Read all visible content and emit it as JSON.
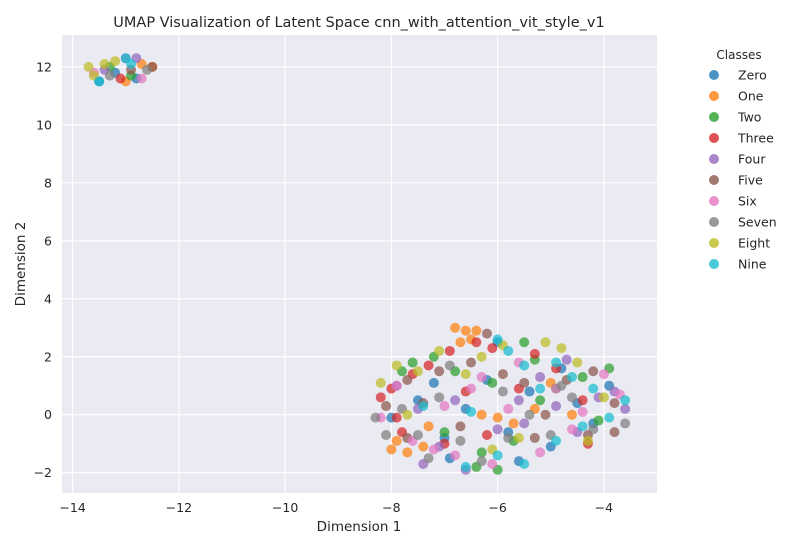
{
  "chart_data": {
    "type": "scatter",
    "title": "UMAP Visualization of Latent Space cnn_with_attention_vit_style_v1",
    "xlabel": "Dimension 1",
    "ylabel": "Dimension 2",
    "xlim": [
      -14.2,
      -3.0
    ],
    "ylim": [
      -2.7,
      13.1
    ],
    "xticks": [
      -14,
      -12,
      -10,
      -8,
      -6,
      -4
    ],
    "yticks": [
      -2,
      0,
      2,
      4,
      6,
      8,
      10,
      12
    ],
    "xtick_labels": [
      "−14",
      "−12",
      "−10",
      "−8",
      "−6",
      "−4"
    ],
    "ytick_labels": [
      "−2",
      "0",
      "2",
      "4",
      "6",
      "8",
      "10",
      "12"
    ],
    "grid": true,
    "background": "#eaeaf2",
    "legend": {
      "title": "Classes",
      "placement": "outside-right",
      "entries": [
        "Zero",
        "One",
        "Two",
        "Three",
        "Four",
        "Five",
        "Six",
        "Seven",
        "Eight",
        "Nine"
      ]
    },
    "colors": [
      "#1f77b4",
      "#ff7f0e",
      "#2ca02c",
      "#d62728",
      "#9467bd",
      "#8c564b",
      "#e377c2",
      "#7f7f7f",
      "#bcbd22",
      "#17becf"
    ],
    "series": [
      {
        "name": "Zero",
        "values": [
          [
            -13.2,
            11.8
          ],
          [
            -12.8,
            11.6
          ],
          [
            -13.5,
            11.5
          ],
          [
            -8.0,
            -0.1
          ],
          [
            -7.5,
            0.5
          ],
          [
            -7.0,
            -0.8
          ],
          [
            -6.6,
            0.2
          ],
          [
            -6.2,
            1.2
          ],
          [
            -6.0,
            2.5
          ],
          [
            -5.8,
            -0.6
          ],
          [
            -5.4,
            0.8
          ],
          [
            -5.0,
            -1.1
          ],
          [
            -4.8,
            1.6
          ],
          [
            -4.5,
            0.4
          ],
          [
            -4.2,
            -0.3
          ],
          [
            -3.9,
            1.0
          ],
          [
            -6.9,
            -1.5
          ],
          [
            -7.2,
            1.1
          ],
          [
            -5.6,
            -1.6
          ]
        ]
      },
      {
        "name": "One",
        "values": [
          [
            -12.7,
            12.1
          ],
          [
            -12.5,
            12.0
          ],
          [
            -13.0,
            11.5
          ],
          [
            -6.8,
            3.0
          ],
          [
            -6.6,
            2.9
          ],
          [
            -6.4,
            2.9
          ],
          [
            -6.5,
            2.6
          ],
          [
            -6.7,
            2.5
          ],
          [
            -8.0,
            -1.2
          ],
          [
            -7.7,
            -1.3
          ],
          [
            -7.4,
            -1.1
          ],
          [
            -7.9,
            -0.9
          ],
          [
            -6.0,
            -0.1
          ],
          [
            -5.7,
            -0.3
          ],
          [
            -5.3,
            0.2
          ],
          [
            -5.0,
            1.1
          ],
          [
            -4.6,
            0.0
          ],
          [
            -7.3,
            -0.4
          ],
          [
            -6.3,
            0.0
          ]
        ]
      },
      {
        "name": "Two",
        "values": [
          [
            -12.9,
            11.7
          ],
          [
            -13.3,
            12.0
          ],
          [
            -7.8,
            1.5
          ],
          [
            -7.6,
            1.8
          ],
          [
            -7.2,
            2.0
          ],
          [
            -6.8,
            1.5
          ],
          [
            -6.1,
            1.1
          ],
          [
            -5.5,
            2.5
          ],
          [
            -5.3,
            1.9
          ],
          [
            -4.9,
            0.9
          ],
          [
            -4.4,
            1.3
          ],
          [
            -3.9,
            1.6
          ],
          [
            -7.0,
            -0.6
          ],
          [
            -6.4,
            -1.8
          ],
          [
            -6.0,
            -1.9
          ],
          [
            -5.7,
            -0.9
          ],
          [
            -5.2,
            0.5
          ],
          [
            -4.1,
            -0.2
          ],
          [
            -6.3,
            -1.3
          ]
        ]
      },
      {
        "name": "Three",
        "values": [
          [
            -13.1,
            11.6
          ],
          [
            -8.2,
            0.6
          ],
          [
            -8.0,
            0.9
          ],
          [
            -7.9,
            -0.1
          ],
          [
            -7.6,
            1.4
          ],
          [
            -7.3,
            1.7
          ],
          [
            -6.9,
            2.2
          ],
          [
            -6.4,
            2.5
          ],
          [
            -6.1,
            2.3
          ],
          [
            -5.3,
            2.1
          ],
          [
            -4.9,
            1.6
          ],
          [
            -4.4,
            0.5
          ],
          [
            -4.3,
            -1.0
          ],
          [
            -7.0,
            -1.0
          ],
          [
            -6.2,
            -0.7
          ],
          [
            -5.6,
            0.9
          ],
          [
            -7.8,
            -0.6
          ],
          [
            -6.6,
            0.8
          ]
        ]
      },
      {
        "name": "Four",
        "values": [
          [
            -13.0,
            12.3
          ],
          [
            -12.8,
            12.3
          ],
          [
            -13.4,
            11.9
          ],
          [
            -7.9,
            1.0
          ],
          [
            -7.5,
            0.2
          ],
          [
            -7.1,
            -1.1
          ],
          [
            -6.6,
            -1.9
          ],
          [
            -6.0,
            -0.5
          ],
          [
            -5.6,
            0.5
          ],
          [
            -5.2,
            1.3
          ],
          [
            -4.9,
            0.3
          ],
          [
            -4.5,
            -0.6
          ],
          [
            -4.1,
            0.6
          ],
          [
            -3.8,
            0.8
          ],
          [
            -3.6,
            0.2
          ],
          [
            -7.4,
            -1.7
          ],
          [
            -5.5,
            -0.3
          ],
          [
            -6.8,
            0.5
          ],
          [
            -4.7,
            1.9
          ]
        ]
      },
      {
        "name": "Five",
        "values": [
          [
            -12.5,
            12.0
          ],
          [
            -12.9,
            11.9
          ],
          [
            -8.1,
            0.3
          ],
          [
            -7.7,
            1.2
          ],
          [
            -7.4,
            0.4
          ],
          [
            -7.1,
            1.5
          ],
          [
            -6.5,
            1.8
          ],
          [
            -6.2,
            2.8
          ],
          [
            -5.9,
            1.4
          ],
          [
            -5.5,
            1.1
          ],
          [
            -5.1,
            0.0
          ],
          [
            -4.7,
            1.2
          ],
          [
            -4.2,
            1.5
          ],
          [
            -3.8,
            -0.6
          ],
          [
            -3.8,
            0.4
          ],
          [
            -6.7,
            -0.4
          ],
          [
            -7.7,
            -0.8
          ],
          [
            -5.3,
            -0.8
          ],
          [
            -4.3,
            -0.7
          ]
        ]
      },
      {
        "name": "Six",
        "values": [
          [
            -13.6,
            11.8
          ],
          [
            -12.7,
            11.6
          ],
          [
            -8.2,
            -0.1
          ],
          [
            -7.9,
            1.0
          ],
          [
            -7.6,
            -0.9
          ],
          [
            -7.2,
            -1.2
          ],
          [
            -6.8,
            -1.4
          ],
          [
            -6.5,
            0.9
          ],
          [
            -6.1,
            -1.7
          ],
          [
            -5.6,
            1.8
          ],
          [
            -5.2,
            -1.3
          ],
          [
            -4.9,
            0.9
          ],
          [
            -4.4,
            0.1
          ],
          [
            -4.0,
            1.4
          ],
          [
            -3.7,
            0.7
          ],
          [
            -7.0,
            0.3
          ],
          [
            -5.8,
            0.2
          ],
          [
            -4.6,
            -0.5
          ],
          [
            -6.3,
            1.3
          ]
        ]
      },
      {
        "name": "Seven",
        "values": [
          [
            -13.3,
            11.7
          ],
          [
            -12.6,
            11.9
          ],
          [
            -8.3,
            -0.1
          ],
          [
            -8.1,
            -0.7
          ],
          [
            -7.8,
            0.2
          ],
          [
            -7.5,
            -0.7
          ],
          [
            -7.1,
            0.6
          ],
          [
            -6.7,
            -0.9
          ],
          [
            -6.3,
            -1.6
          ],
          [
            -5.8,
            -0.8
          ],
          [
            -5.4,
            0.0
          ],
          [
            -5.0,
            -0.7
          ],
          [
            -4.6,
            0.6
          ],
          [
            -4.2,
            -0.5
          ],
          [
            -3.6,
            -0.3
          ],
          [
            -6.9,
            1.7
          ],
          [
            -5.9,
            0.8
          ],
          [
            -4.8,
            1.0
          ],
          [
            -7.3,
            -1.5
          ]
        ]
      },
      {
        "name": "Eight",
        "values": [
          [
            -13.7,
            12.0
          ],
          [
            -13.6,
            11.7
          ],
          [
            -13.4,
            12.1
          ],
          [
            -13.2,
            12.2
          ],
          [
            -8.2,
            1.1
          ],
          [
            -7.9,
            1.7
          ],
          [
            -7.5,
            1.5
          ],
          [
            -7.1,
            2.2
          ],
          [
            -6.6,
            1.4
          ],
          [
            -6.3,
            2.0
          ],
          [
            -5.9,
            2.4
          ],
          [
            -5.1,
            2.5
          ],
          [
            -4.8,
            2.3
          ],
          [
            -4.5,
            1.8
          ],
          [
            -4.0,
            0.6
          ],
          [
            -5.6,
            -0.8
          ],
          [
            -6.1,
            -1.2
          ],
          [
            -7.7,
            0.0
          ],
          [
            -4.3,
            -0.9
          ]
        ]
      },
      {
        "name": "Nine",
        "values": [
          [
            -13.0,
            12.3
          ],
          [
            -12.9,
            12.1
          ],
          [
            -13.5,
            11.5
          ],
          [
            -6.0,
            2.6
          ],
          [
            -5.8,
            2.2
          ],
          [
            -5.5,
            1.7
          ],
          [
            -5.2,
            0.9
          ],
          [
            -4.9,
            1.8
          ],
          [
            -4.6,
            1.3
          ],
          [
            -4.2,
            0.9
          ],
          [
            -3.9,
            -0.1
          ],
          [
            -3.6,
            0.5
          ],
          [
            -6.6,
            -1.8
          ],
          [
            -6.0,
            -1.4
          ],
          [
            -5.5,
            -1.7
          ],
          [
            -4.9,
            -0.9
          ],
          [
            -6.5,
            0.1
          ],
          [
            -7.4,
            0.3
          ],
          [
            -4.4,
            -0.4
          ]
        ]
      }
    ]
  }
}
